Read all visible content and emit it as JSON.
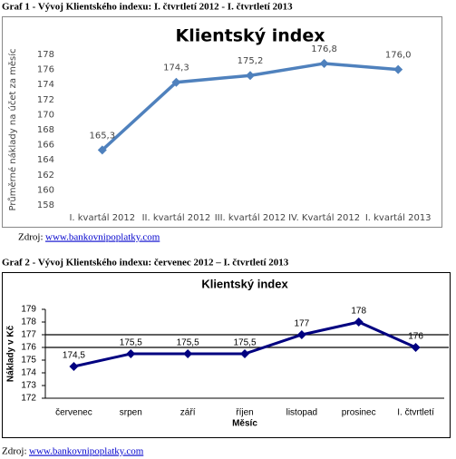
{
  "caption_1": "Graf 1 - Vývoj Klientského indexu: I. čtvrtletí 2012 - I. čtvrtletí 2013",
  "source_1": {
    "label": "Zdroj:",
    "link": "www.bankovnipoplatky.com"
  },
  "caption_2": "Graf 2 - Vývoj Klientského indexu: červenec 2012 – I. čtvrtletí 2013",
  "source_2": {
    "label": "Zdroj:",
    "link": "www.bankovnipoplatky.com"
  },
  "chart_data": [
    {
      "type": "line",
      "title": "Klientský index",
      "y_label": "Průměrné náklady na účet za měsíc",
      "categories": [
        "I. kvartál 2012",
        "II. kvartál 2012",
        "III. kvartál 2012",
        "IV. Kvartál 2012",
        "I. kvartál 2013"
      ],
      "values": [
        165.3,
        174.3,
        175.2,
        176.8,
        176.0
      ],
      "value_labels": [
        "165,3",
        "174,3",
        "175,2",
        "176,8",
        "176,0"
      ],
      "color": "#4f81bd",
      "ylim": [
        158,
        178
      ],
      "yticks": [
        158,
        160,
        162,
        164,
        166,
        168,
        170,
        172,
        174,
        176,
        178
      ]
    },
    {
      "type": "line",
      "title": "Klientský index",
      "y_label": "Náklady v Kč",
      "x_label": "Měsíc",
      "categories": [
        "červenec",
        "srpen",
        "září",
        "říjen",
        "listopad",
        "prosinec",
        "I. čtvrtletí"
      ],
      "values": [
        174.5,
        175.5,
        175.5,
        175.5,
        177,
        178,
        176
      ],
      "value_labels": [
        "174,5",
        "175,5",
        "175,5",
        "175,5",
        "177",
        "178",
        "176"
      ],
      "color": "#000080",
      "ylim": [
        172,
        179
      ],
      "yticks": [
        172,
        173,
        174,
        175,
        176,
        177,
        178,
        179
      ],
      "reference_lines": [
        176,
        177
      ]
    }
  ]
}
